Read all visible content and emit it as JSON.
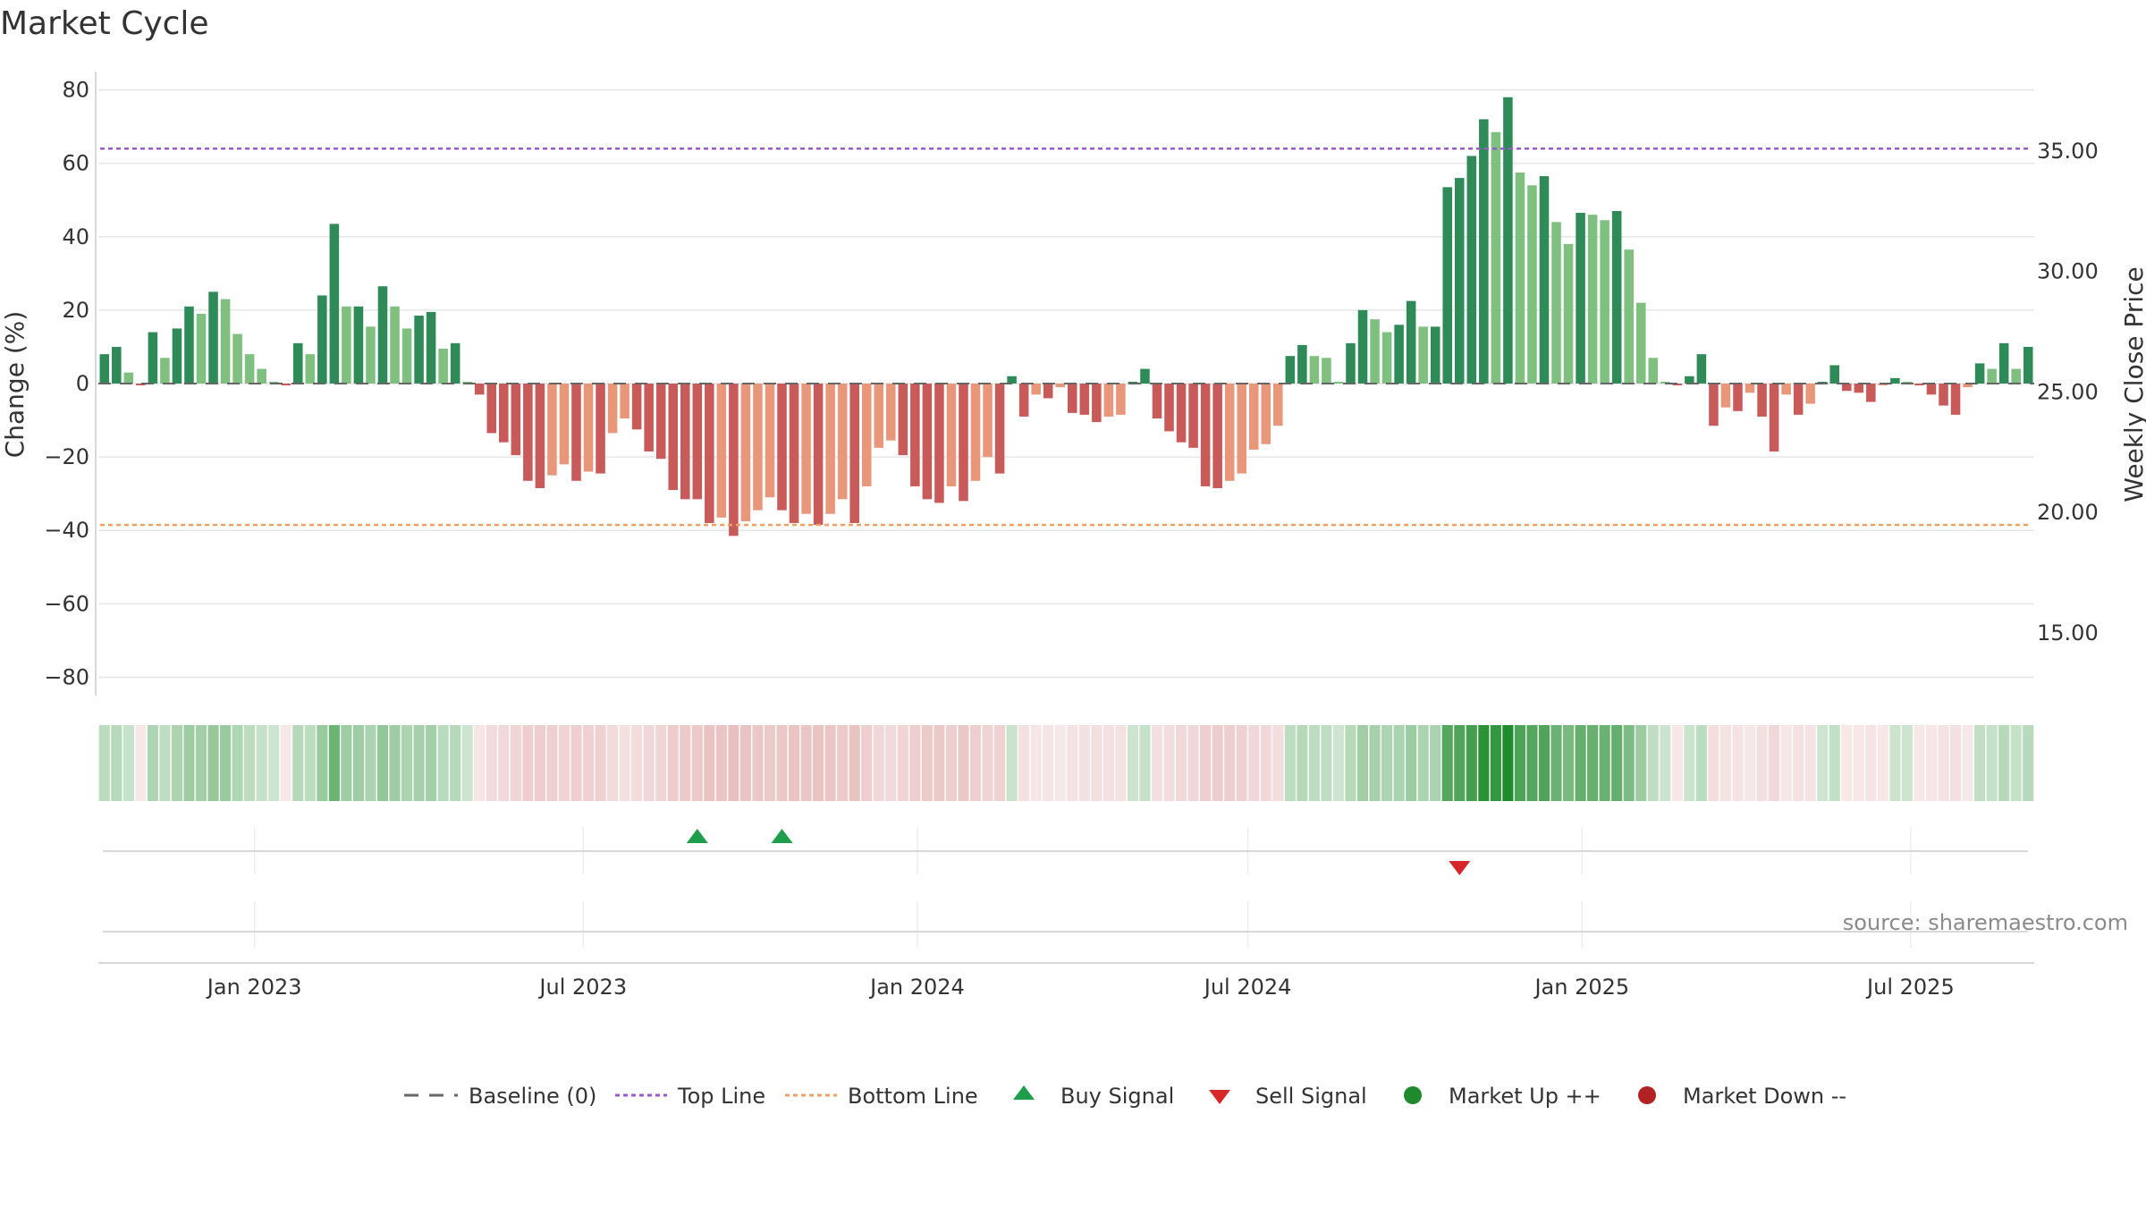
{
  "chart_data": {
    "type": "bar",
    "title": "Market Cycle",
    "ylabel": "Change (%)",
    "y2label": "Weekly Close Price",
    "ylim": [
      -85,
      85
    ],
    "y2lim": [
      12.4,
      38.3
    ],
    "yticks": [
      80,
      60,
      40,
      20,
      0,
      -20,
      -40,
      -60,
      -80
    ],
    "y2ticks": [
      "35.00",
      "30.00",
      "25.00",
      "20.00",
      "15.00"
    ],
    "y2tick_values": [
      35,
      30,
      25,
      20,
      15
    ],
    "x_start": "2022-10-07",
    "x_end": "2025-09-07",
    "x_interval_days": 7,
    "xtick_dates": [
      "2023-01-01",
      "2023-07-01",
      "2024-01-01",
      "2024-07-01",
      "2025-01-01",
      "2025-07-01"
    ],
    "xticks": [
      "Jan 2023",
      "Jul 2023",
      "Jan 2024",
      "Jul 2024",
      "Jan 2025",
      "Jul 2025"
    ],
    "grid": true,
    "top_line": 64,
    "bottom_line": -38.5,
    "colors": {
      "up_strong": "#2e8b57",
      "up_light": "#7fbf7f",
      "down_strong": "#c95a5a",
      "down_light": "#e8977a",
      "top_line": "#9b59d0",
      "bottom_line": "#f0a060",
      "buy": "#1e9e4a",
      "sell": "#d62728",
      "market_up": "#1f8b2c",
      "market_down": "#b22222",
      "baseline": "#666666"
    },
    "weekly_change": [
      8,
      10,
      3,
      -0.5,
      14,
      7,
      15,
      21,
      19,
      25,
      23,
      13.5,
      8,
      4,
      0.5,
      -0.5,
      11,
      8,
      24,
      43.5,
      21,
      21,
      15.5,
      26.5,
      21,
      15,
      18.5,
      19.5,
      9.5,
      11,
      0.5,
      -3,
      -13.5,
      -16,
      -19.5,
      -26.5,
      -28.5,
      -25,
      -22,
      -26.5,
      -24,
      -24.5,
      -13.5,
      -9.5,
      -12.5,
      -18.5,
      -20.5,
      -29,
      -31.5,
      -31.5,
      -38,
      -36.5,
      -41.5,
      -37.5,
      -34.5,
      -31,
      -34.5,
      -38,
      -35.5,
      -38.5,
      -35.5,
      -31.5,
      -38,
      -28,
      -17.5,
      -15.5,
      -19.5,
      -28,
      -31.5,
      -32.5,
      -28,
      -32,
      -26.5,
      -20,
      -24.5,
      2,
      -9,
      -3,
      -4,
      -1,
      -8,
      -8.5,
      -10.5,
      -9,
      -8.5,
      0.5,
      4,
      -9.5,
      -13,
      -16,
      -17.5,
      -28,
      -28.5,
      -26.5,
      -24.5,
      -18,
      -16.5,
      -11.5,
      7.5,
      10.5,
      7.5,
      7,
      0.5,
      11,
      20,
      17.5,
      14,
      16,
      22.5,
      15.5,
      15.5,
      53.5,
      56,
      62,
      72,
      68.5,
      78,
      57.5,
      54,
      56.5,
      44,
      38,
      46.5,
      46,
      44.5,
      47,
      36.5,
      22,
      7,
      0.5,
      -0.5,
      2,
      8,
      -11.5,
      -6.5,
      -7.5,
      -2.5,
      -9,
      -18.5,
      -3,
      -8.5,
      -5.5,
      0.5,
      5,
      -2,
      -2.5,
      -5,
      -0.5,
      1.5,
      0.5,
      -0.5,
      -3,
      -6,
      -8.5,
      -1,
      5.5,
      4,
      11,
      4,
      10
    ],
    "buy_signals": [
      "2023-09-15",
      "2023-11-03"
    ],
    "sell_signals": [
      "2024-11-29"
    ],
    "source": "source: sharemaestro.com",
    "legend_position": "bottom-center",
    "legend": [
      "Baseline (0)",
      "Top Line",
      "Bottom Line",
      "Buy Signal",
      "Sell Signal",
      "Market Up ++",
      "Market Down --"
    ]
  }
}
